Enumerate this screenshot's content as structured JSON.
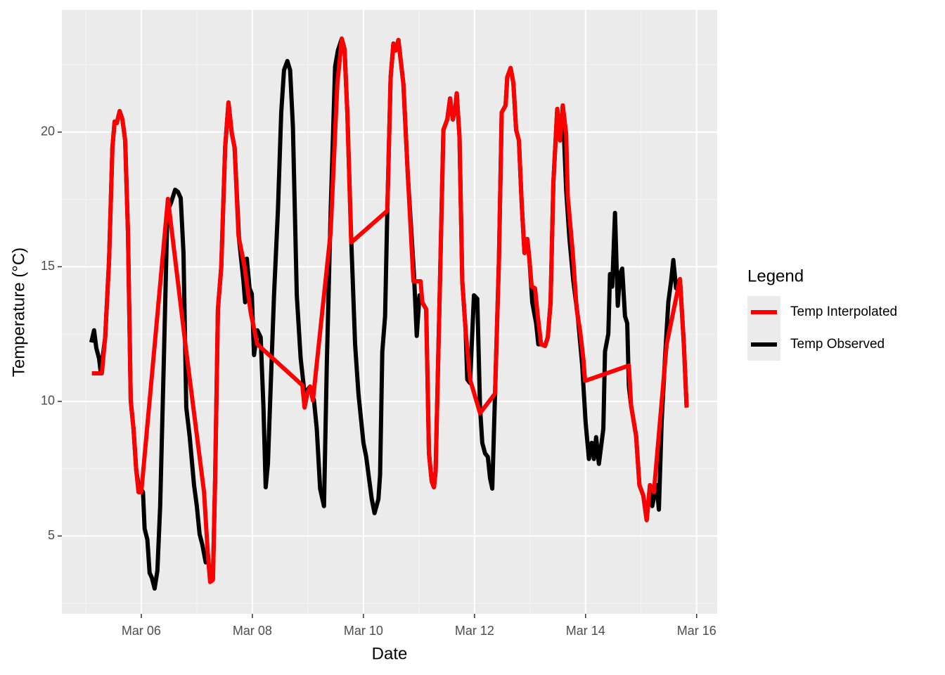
{
  "chart_data": {
    "type": "line",
    "x_label": "Date",
    "y_label": "Temperature (°C)",
    "legend_title": "Legend",
    "xlim": [
      4.57,
      16.37
    ],
    "ylim": [
      2.11,
      24.54
    ],
    "xticks": [
      {
        "value": 6,
        "label": "Mar 06"
      },
      {
        "value": 8,
        "label": "Mar 08"
      },
      {
        "value": 10,
        "label": "Mar 10"
      },
      {
        "value": 12,
        "label": "Mar 12"
      },
      {
        "value": 14,
        "label": "Mar 14"
      },
      {
        "value": 16,
        "label": "Mar 16"
      }
    ],
    "yticks": [
      5,
      10,
      15,
      20
    ],
    "grid": true,
    "legend_position": "right",
    "series": [
      {
        "name": "Temp Interpolated",
        "color": "#ff0000",
        "x": [
          5.11,
          5.29,
          5.35,
          5.42,
          5.48,
          5.52,
          5.56,
          5.61,
          5.66,
          5.71,
          5.76,
          5.81,
          5.86,
          5.91,
          5.95,
          6.0,
          6.48,
          6.81,
          7.13,
          7.2,
          7.24,
          7.29,
          7.33,
          7.38,
          7.44,
          7.51,
          7.57,
          7.63,
          7.68,
          7.75,
          7.86,
          7.97,
          8.09,
          8.9,
          8.94,
          8.99,
          9.04,
          9.09,
          9.41,
          9.53,
          9.61,
          9.66,
          9.71,
          9.78,
          10.43,
          10.49,
          10.54,
          10.58,
          10.63,
          10.72,
          10.8,
          10.9,
          11.03,
          11.06,
          11.13,
          11.18,
          11.23,
          11.27,
          11.3,
          11.37,
          11.44,
          11.51,
          11.56,
          11.61,
          11.66,
          11.68,
          11.73,
          11.78,
          11.84,
          11.92,
          12.1,
          12.37,
          12.44,
          12.49,
          12.56,
          12.59,
          12.65,
          12.7,
          12.75,
          12.8,
          12.85,
          12.9,
          12.95,
          12.99,
          13.03,
          13.09,
          13.14,
          13.2,
          13.27,
          13.32,
          13.37,
          13.42,
          13.49,
          13.54,
          13.59,
          13.65,
          13.68,
          13.77,
          13.84,
          13.9,
          13.96,
          13.99,
          14.78,
          14.82,
          14.91,
          14.97,
          15.04,
          15.1,
          15.16,
          15.23,
          15.46,
          15.7,
          15.77,
          15.82
        ],
        "values": [
          11.04,
          11.04,
          12.38,
          15.25,
          19.43,
          20.39,
          20.34,
          20.78,
          20.47,
          19.69,
          16.29,
          10.03,
          8.98,
          7.42,
          6.63,
          6.63,
          17.52,
          11.85,
          6.63,
          4.28,
          3.29,
          3.37,
          7.15,
          13.42,
          14.99,
          19.43,
          21.1,
          19.95,
          19.43,
          16.16,
          14.99,
          13.29,
          12.12,
          10.6,
          9.77,
          10.29,
          10.55,
          10.03,
          16.29,
          21.78,
          23.47,
          23.08,
          20.73,
          15.9,
          17.08,
          22.04,
          23.29,
          23.03,
          23.42,
          21.78,
          18.38,
          14.46,
          14.46,
          13.68,
          13.42,
          8.07,
          7.02,
          6.81,
          7.42,
          13.68,
          20.08,
          20.47,
          21.25,
          20.47,
          20.99,
          21.44,
          19.82,
          14.46,
          12.64,
          10.81,
          9.56,
          10.29,
          15.25,
          20.73,
          20.99,
          22.04,
          22.38,
          21.83,
          20.08,
          19.69,
          17.34,
          15.51,
          16.03,
          15.25,
          14.26,
          14.2,
          13.16,
          12.12,
          12.06,
          12.38,
          13.68,
          18.12,
          20.86,
          19.69,
          20.99,
          19.95,
          17.6,
          15.51,
          13.42,
          12.64,
          11.59,
          10.76,
          11.33,
          9.84,
          8.72,
          6.89,
          6.5,
          5.59,
          6.89,
          6.63,
          12.12,
          14.54,
          12.12,
          9.77
        ]
      },
      {
        "name": "Temp Observed",
        "color": "#000000",
        "x": [
          5.1,
          5.15,
          5.19,
          5.24,
          5.27,
          5.35,
          5.42,
          5.48,
          5.52,
          5.56,
          5.61,
          5.66,
          5.71,
          5.76,
          5.81,
          5.86,
          5.91,
          5.95,
          6.03,
          6.06,
          6.11,
          6.15,
          6.19,
          6.24,
          6.29,
          6.34,
          6.41,
          6.47,
          6.53,
          6.61,
          6.66,
          6.71,
          6.76,
          6.81,
          6.87,
          6.95,
          7.0,
          7.05,
          7.1,
          7.16,
          7.2,
          7.24,
          7.29,
          7.33,
          7.38,
          7.44,
          7.51,
          7.57,
          7.63,
          7.68,
          7.76,
          7.84,
          7.87,
          7.9,
          7.95,
          7.99,
          8.03,
          8.09,
          8.15,
          8.2,
          8.24,
          8.28,
          8.33,
          8.39,
          8.46,
          8.52,
          8.57,
          8.63,
          8.68,
          8.73,
          8.8,
          8.87,
          8.94,
          9.04,
          9.11,
          9.16,
          9.22,
          9.29,
          9.34,
          9.41,
          9.49,
          9.54,
          9.61,
          9.66,
          9.71,
          9.78,
          9.85,
          9.91,
          10.0,
          10.05,
          10.1,
          10.15,
          10.2,
          10.27,
          10.3,
          10.34,
          10.39,
          10.43,
          10.49,
          10.54,
          10.58,
          10.63,
          10.72,
          10.8,
          10.91,
          10.96,
          11.01,
          11.06,
          11.13,
          11.18,
          11.23,
          11.27,
          11.3,
          11.37,
          11.44,
          11.51,
          11.56,
          11.61,
          11.66,
          11.68,
          11.73,
          11.78,
          11.84,
          11.87,
          11.92,
          11.99,
          12.05,
          12.1,
          12.14,
          12.19,
          12.24,
          12.28,
          12.32,
          12.37,
          12.44,
          12.49,
          12.56,
          12.59,
          12.65,
          12.7,
          12.75,
          12.8,
          12.85,
          12.9,
          12.95,
          12.99,
          13.04,
          13.11,
          13.15,
          13.2,
          13.27,
          13.32,
          13.37,
          13.42,
          13.49,
          13.54,
          13.59,
          13.65,
          13.71,
          13.78,
          13.86,
          13.94,
          14.0,
          14.06,
          14.11,
          14.15,
          14.19,
          14.24,
          14.32,
          14.35,
          14.41,
          14.44,
          14.48,
          14.53,
          14.58,
          14.62,
          14.66,
          14.71,
          14.75,
          14.78,
          14.82,
          14.91,
          14.97,
          15.04,
          15.1,
          15.16,
          15.2,
          15.28,
          15.32,
          15.37,
          15.43,
          15.49,
          15.54,
          15.58,
          15.63,
          15.7,
          15.77,
          15.82
        ],
        "values": [
          12.19,
          12.64,
          11.98,
          11.59,
          11.07,
          12.38,
          15.25,
          19.43,
          20.39,
          20.34,
          20.78,
          20.47,
          19.69,
          16.29,
          10.03,
          8.98,
          7.42,
          6.89,
          6.63,
          5.27,
          4.86,
          3.63,
          3.45,
          3.05,
          3.71,
          6.11,
          11.85,
          17.08,
          17.34,
          17.86,
          17.78,
          17.55,
          15.51,
          9.77,
          8.72,
          6.89,
          6.11,
          5.07,
          4.67,
          4.02,
          4.28,
          3.37,
          3.45,
          7.15,
          13.42,
          14.99,
          19.43,
          21.1,
          19.95,
          19.43,
          16.03,
          14.46,
          13.68,
          15.3,
          14.2,
          13.99,
          11.72,
          12.64,
          12.38,
          9.77,
          6.81,
          7.68,
          10.55,
          13.94,
          17.08,
          20.73,
          22.3,
          22.64,
          22.3,
          20.21,
          13.94,
          11.59,
          10.29,
          10.55,
          10.03,
          8.98,
          6.76,
          6.11,
          11.33,
          17.08,
          22.43,
          23.03,
          23.47,
          23.08,
          20.73,
          16.03,
          12.12,
          10.29,
          8.46,
          7.94,
          7.15,
          6.37,
          5.85,
          6.37,
          7.28,
          11.85,
          13.16,
          17.08,
          22.04,
          23.29,
          23.03,
          23.42,
          21.78,
          18.38,
          14.73,
          12.43,
          13.94,
          13.68,
          13.42,
          8.07,
          7.02,
          6.81,
          7.42,
          13.68,
          20.08,
          20.47,
          21.25,
          20.47,
          20.99,
          21.44,
          19.82,
          14.46,
          12.64,
          10.81,
          10.68,
          13.94,
          13.81,
          9.77,
          8.46,
          8.07,
          7.94,
          7.15,
          6.76,
          10.29,
          15.25,
          20.73,
          20.99,
          22.04,
          22.38,
          21.83,
          20.08,
          19.69,
          17.34,
          15.51,
          16.03,
          15.25,
          13.68,
          12.9,
          12.12,
          12.12,
          12.06,
          12.38,
          13.68,
          18.12,
          20.86,
          19.69,
          20.99,
          17.86,
          16.03,
          14.46,
          13.16,
          11.33,
          9.24,
          7.86,
          8.46,
          7.86,
          8.67,
          7.68,
          8.98,
          11.85,
          12.51,
          14.73,
          14.26,
          17.0,
          13.55,
          14.73,
          14.93,
          13.16,
          12.9,
          10.55,
          9.84,
          8.72,
          6.89,
          6.5,
          5.59,
          6.89,
          6.11,
          6.89,
          5.98,
          9.24,
          11.59,
          13.68,
          14.46,
          15.25,
          14.2,
          14.54,
          12.12,
          9.77
        ]
      }
    ]
  }
}
